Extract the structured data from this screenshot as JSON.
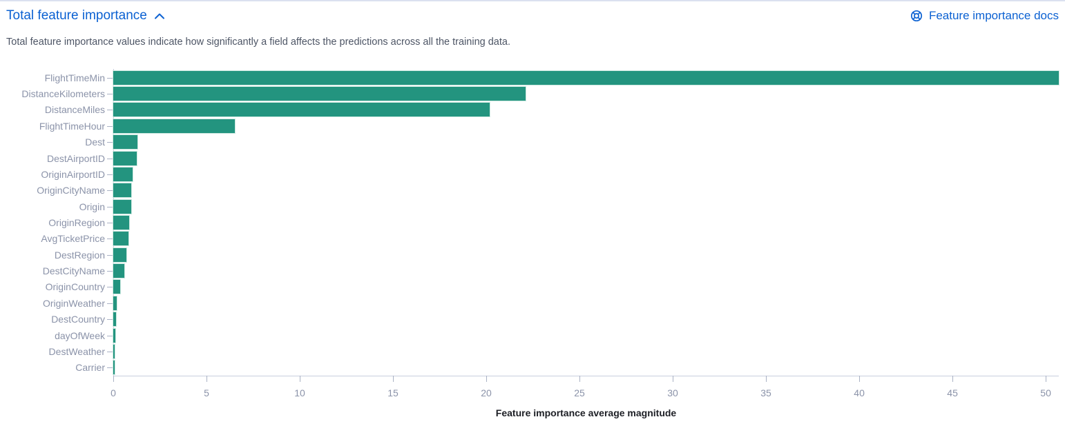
{
  "header": {
    "title": "Total feature importance",
    "docs_link_label": "Feature importance docs"
  },
  "description": "Total feature importance values indicate how significantly a field affects the predictions across all the training data.",
  "colors": {
    "accent_blue": "#0b61d2",
    "bar_fill": "#23947f",
    "axis_label": "#8b93a9",
    "axis_line": "#c7cedd",
    "description_text": "#4d5565",
    "axis_title_text": "#1c1e24"
  },
  "chart_data": {
    "type": "bar",
    "orientation": "horizontal",
    "title": "",
    "xlabel": "Feature importance average magnitude",
    "ylabel": "",
    "categories": [
      "FlightTimeMin",
      "DistanceKilometers",
      "DistanceMiles",
      "FlightTimeHour",
      "Dest",
      "DestAirportID",
      "OriginAirportID",
      "OriginCityName",
      "Origin",
      "OriginRegion",
      "AvgTicketPrice",
      "DestRegion",
      "DestCityName",
      "OriginCountry",
      "OriginWeather",
      "DestCountry",
      "dayOfWeek",
      "DestWeather",
      "Carrier"
    ],
    "values": [
      50.7,
      22.1,
      20.2,
      6.5,
      1.3,
      1.27,
      1.05,
      0.97,
      0.95,
      0.86,
      0.8,
      0.72,
      0.6,
      0.38,
      0.17,
      0.15,
      0.12,
      0.09,
      0.05
    ],
    "xlim": [
      0,
      50.7
    ],
    "xticks": [
      0,
      5,
      10,
      15,
      20,
      25,
      30,
      35,
      40,
      45,
      50
    ],
    "grid": false,
    "legend": "none"
  }
}
